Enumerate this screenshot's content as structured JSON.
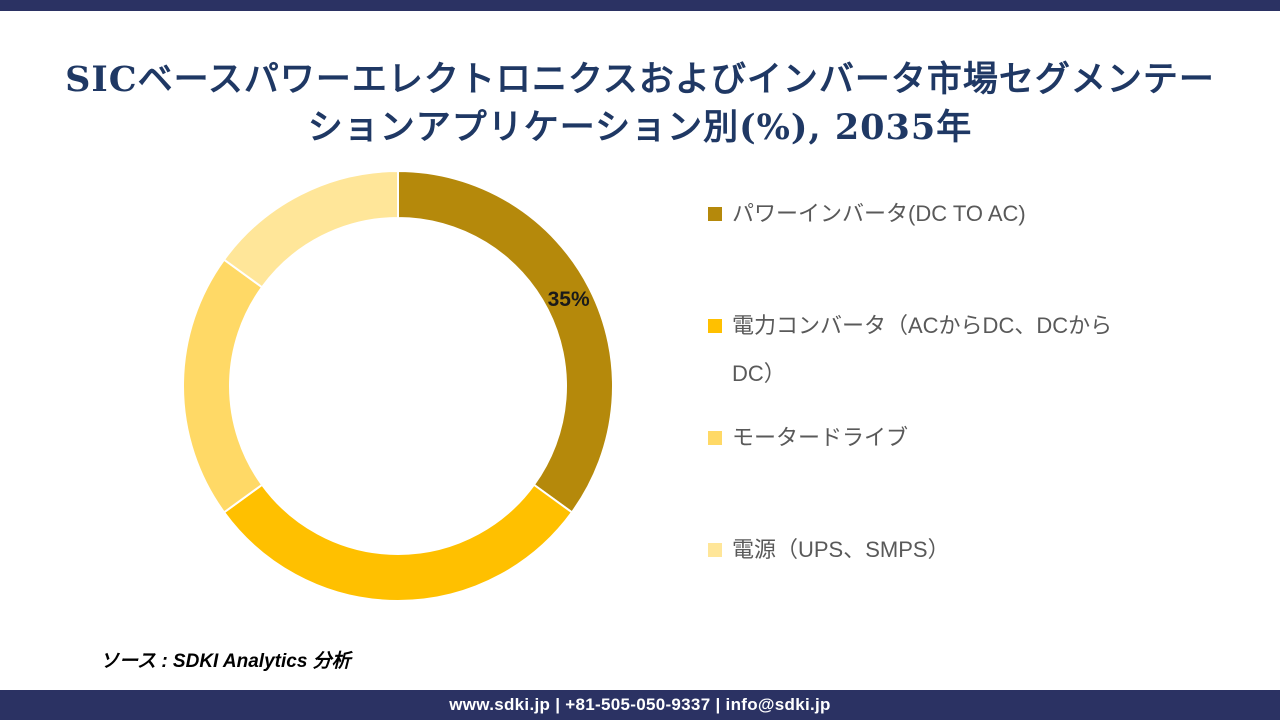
{
  "title": {
    "line1": "SICベースパワーエレクトロニクスおよびインバータ市場セグメンテー",
    "line2": "ションアプリケーション別(%), 2035年",
    "full": "SICベースパワーエレクトロニクスおよびインバータ市場セグメンテーションアプリケーション別(%), 2035年",
    "color": "#1F3864"
  },
  "chart_data": {
    "type": "pie",
    "subtype": "donut",
    "title": "SICベースパワーエレクトロニクスおよびインバータ市場セグメンテーションアプリケーション別(%), 2035年",
    "categories": [
      "パワーインバータ(DC TO AC)",
      "電力コンバータ（ACからDC、DCからDC）",
      "モータードライブ",
      "電源（UPS、SMPS）"
    ],
    "values": [
      35,
      30,
      20,
      15
    ],
    "unit": "%",
    "colors": [
      "#B5890B",
      "#FFC000",
      "#FFD966",
      "#FFE699"
    ],
    "labeled_slices": [
      0
    ],
    "label_color": "#1A1A1A",
    "start_angle_deg": 0,
    "direction": "clockwise",
    "legend_position": "right",
    "hole_ratio": 0.78
  },
  "legend": {
    "text_color": "#595959",
    "items": [
      {
        "label": "パワーインバータ(DC TO AC)",
        "lines": [
          "パワーインバータ(DC TO AC)"
        ],
        "color": "#B5890B"
      },
      {
        "label": "電力コンバータ（ACからDC、DCからDC）",
        "lines": [
          "電力コンバータ（ACからDC、DCから",
          "DC）"
        ],
        "color": "#FFC000"
      },
      {
        "label": "モータードライブ",
        "lines": [
          "モータードライブ"
        ],
        "color": "#FFD966"
      },
      {
        "label": "電源（UPS、SMPS）",
        "lines": [
          "電源（UPS、SMPS）"
        ],
        "color": "#FFE699"
      }
    ]
  },
  "source": {
    "text": "ソース : SDKI Analytics 分析"
  },
  "footer": {
    "text": "www.sdki.jp | +81-505-050-9337 | info@sdki.jp",
    "background": "#2B3263",
    "text_color": "#FFFFFF"
  },
  "top_bar": {
    "background": "#2B3263"
  }
}
